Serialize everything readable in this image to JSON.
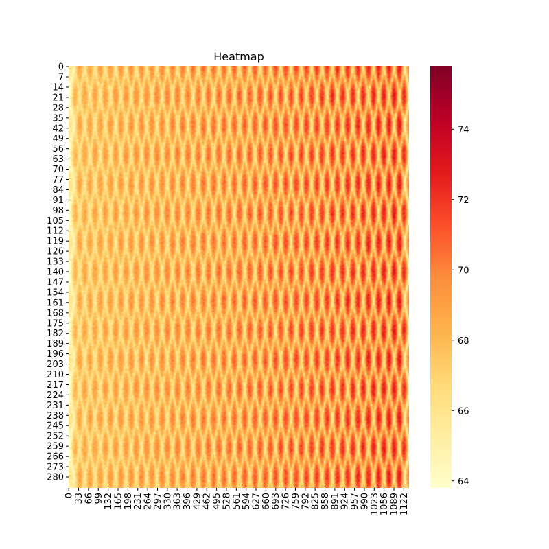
{
  "chart_data": {
    "type": "heatmap",
    "title": "Heatmap",
    "xlabel": "",
    "ylabel": "",
    "n_rows": 288,
    "n_cols": 1140,
    "y_ticks": [
      "0",
      "7",
      "14",
      "21",
      "28",
      "35",
      "42",
      "49",
      "56",
      "63",
      "70",
      "77",
      "84",
      "91",
      "98",
      "105",
      "112",
      "119",
      "126",
      "133",
      "140",
      "147",
      "154",
      "161",
      "168",
      "175",
      "182",
      "189",
      "196",
      "203",
      "210",
      "217",
      "224",
      "231",
      "238",
      "245",
      "252",
      "259",
      "266",
      "273",
      "280"
    ],
    "x_ticks": [
      "0",
      "33",
      "66",
      "99",
      "132",
      "165",
      "198",
      "231",
      "264",
      "297",
      "330",
      "363",
      "396",
      "429",
      "462",
      "495",
      "528",
      "561",
      "594",
      "627",
      "660",
      "693",
      "726",
      "759",
      "792",
      "825",
      "858",
      "891",
      "924",
      "957",
      "990",
      "1023",
      "1056",
      "1089",
      "1122"
    ],
    "colorbar": {
      "cmap": "YlOrRd",
      "vmin": 63.8,
      "vmax": 75.8,
      "ticks": [
        "64",
        "66",
        "68",
        "70",
        "72",
        "74"
      ]
    },
    "value_range": [
      63.8,
      75.8
    ],
    "pattern": "diamond lattice",
    "gradient": "values increase from left to right"
  }
}
